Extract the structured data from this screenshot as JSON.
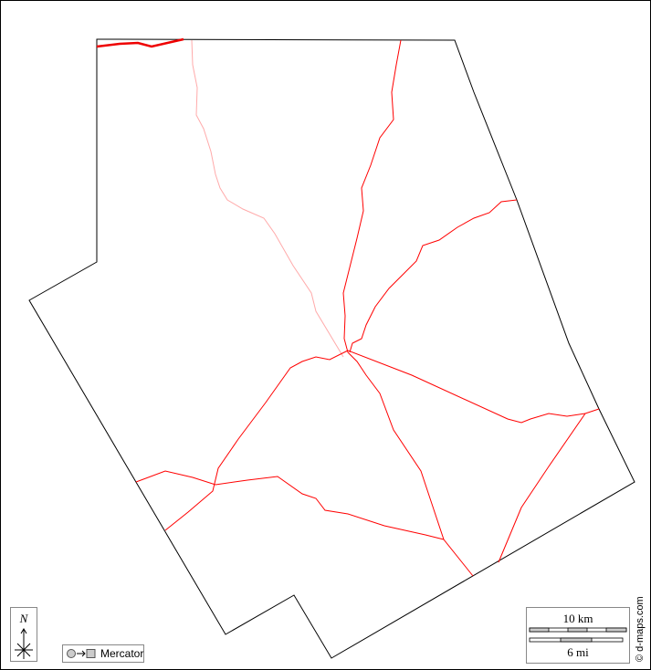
{
  "map": {
    "boundary_color": "#000000",
    "road_color": "#ff0000",
    "minor_road_color": "#ffaaaa"
  },
  "compass": {
    "label": "N",
    "icon": "north-arrow-icon"
  },
  "projection": {
    "label": "Mercator",
    "icon": "projection-icon"
  },
  "scale": {
    "km_label": "10 km",
    "mi_label": "6 mi"
  },
  "credit": "© d-maps.com"
}
